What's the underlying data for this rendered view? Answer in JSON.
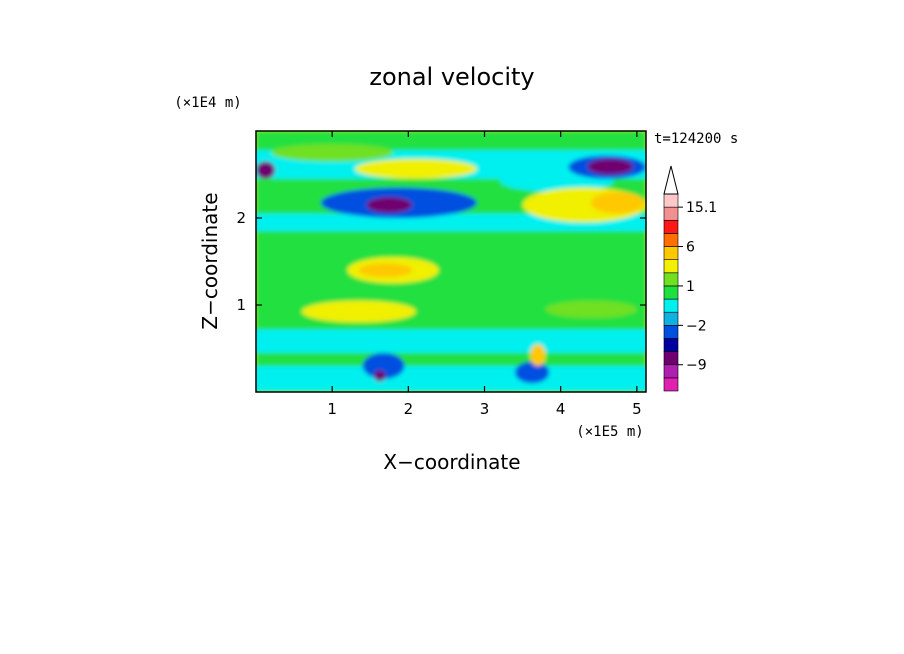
{
  "chart_data": {
    "type": "heatmap",
    "title": "zonal velocity",
    "xlabel": "X−coordinate",
    "ylabel": "Z−coordinate",
    "x_multiplier": "(×1E5 m)",
    "y_multiplier": "(×1E4 m)",
    "time_label": "t=124200 s",
    "xlim": [
      0,
      5.12
    ],
    "ylim": [
      0,
      3.0
    ],
    "x_ticks": [
      "1",
      "2",
      "3",
      "4",
      "5"
    ],
    "x_tick_values": [
      1,
      2,
      3,
      4,
      5
    ],
    "y_ticks": [
      "1",
      "2"
    ],
    "y_tick_values": [
      1,
      2
    ],
    "colorbar": {
      "tick_labels": [
        "15.1",
        "6",
        "1",
        "−2",
        "−9"
      ],
      "tick_values": [
        15.1,
        6,
        1,
        -2,
        -9
      ],
      "levels": [
        -16,
        -12,
        -9,
        -6,
        -3,
        -2,
        -1,
        0,
        1,
        2,
        4,
        6,
        9,
        12,
        15.1,
        18
      ],
      "colors": [
        "#e020b0",
        "#b020b0",
        "#700070",
        "#0000a0",
        "#0050e0",
        "#10b0e0",
        "#00f0f0",
        "#20e040",
        "#70e020",
        "#f0f000",
        "#ffc800",
        "#ff7000",
        "#ff1818",
        "#f09090",
        "#ffc8c8"
      ]
    },
    "background_value": 0.5,
    "features": [
      {
        "kind": "band",
        "x": [
          0,
          5.12
        ],
        "z": [
          2.45,
          2.78
        ],
        "value": -0.5
      },
      {
        "kind": "band",
        "x": [
          0,
          5.12
        ],
        "z": [
          1.85,
          2.05
        ],
        "value": -0.5
      },
      {
        "kind": "band",
        "x": [
          0,
          5.12
        ],
        "z": [
          0.45,
          0.72
        ],
        "value": -0.5
      },
      {
        "kind": "band",
        "x": [
          0,
          5.12
        ],
        "z": [
          0.0,
          0.3
        ],
        "value": -0.5
      },
      {
        "kind": "blob",
        "x": [
          1.3,
          2.9
        ],
        "z": [
          2.45,
          2.68
        ],
        "value": 2.5
      },
      {
        "kind": "blob",
        "x": [
          0.2,
          1.8
        ],
        "z": [
          2.65,
          2.85
        ],
        "value": 1.5
      },
      {
        "kind": "blob",
        "x": [
          3.2,
          4.7
        ],
        "z": [
          2.3,
          2.55
        ],
        "value": -0.5
      },
      {
        "kind": "blob",
        "x": [
          0.85,
          2.9
        ],
        "z": [
          2.0,
          2.35
        ],
        "value": -2.5
      },
      {
        "kind": "blob",
        "x": [
          1.45,
          2.05
        ],
        "z": [
          2.06,
          2.24
        ],
        "value": -7
      },
      {
        "kind": "blob",
        "x": [
          3.5,
          5.12
        ],
        "z": [
          1.95,
          2.35
        ],
        "value": 2.5
      },
      {
        "kind": "blob",
        "x": [
          4.4,
          5.1
        ],
        "z": [
          2.05,
          2.3
        ],
        "value": 5
      },
      {
        "kind": "blob",
        "x": [
          4.1,
          5.12
        ],
        "z": [
          2.45,
          2.72
        ],
        "value": -2.5
      },
      {
        "kind": "blob",
        "x": [
          4.35,
          4.95
        ],
        "z": [
          2.5,
          2.68
        ],
        "value": -7
      },
      {
        "kind": "blob",
        "x": [
          0.0,
          0.25
        ],
        "z": [
          2.45,
          2.65
        ],
        "value": -7
      },
      {
        "kind": "blob",
        "x": [
          1.2,
          2.4
        ],
        "z": [
          1.25,
          1.55
        ],
        "value": 2.5
      },
      {
        "kind": "blob",
        "x": [
          1.35,
          2.05
        ],
        "z": [
          1.32,
          1.48
        ],
        "value": 5
      },
      {
        "kind": "blob",
        "x": [
          0.6,
          2.1
        ],
        "z": [
          0.8,
          1.05
        ],
        "value": 2.5
      },
      {
        "kind": "blob",
        "x": [
          3.8,
          5.0
        ],
        "z": [
          0.85,
          1.05
        ],
        "value": 1.5
      },
      {
        "kind": "blob",
        "x": [
          1.4,
          1.95
        ],
        "z": [
          0.15,
          0.45
        ],
        "value": -2.5
      },
      {
        "kind": "blob",
        "x": [
          1.55,
          1.7
        ],
        "z": [
          0.12,
          0.25
        ],
        "value": -7
      },
      {
        "kind": "blob",
        "x": [
          3.4,
          3.85
        ],
        "z": [
          0.1,
          0.35
        ],
        "value": -2.5
      },
      {
        "kind": "blob",
        "x": [
          3.6,
          3.8
        ],
        "z": [
          0.3,
          0.55
        ],
        "value": 5
      }
    ]
  }
}
